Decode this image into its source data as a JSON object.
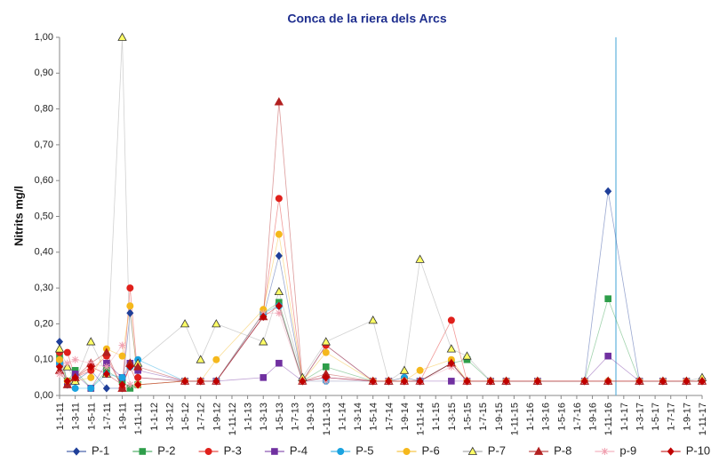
{
  "chart_data": {
    "type": "line",
    "title": "Conca de la riera dels Arcs",
    "y_label": "Nitrits mg/l",
    "x": [
      "1-1-11",
      "1-2-11",
      "1-3-11",
      "1-5-11",
      "1-7-11",
      "1-9-11",
      "1-10-11",
      "1-11-11",
      "1-5-12",
      "1-7-12",
      "1-9-12",
      "1-3-13",
      "1-5-13",
      "1-8-13",
      "1-11-13",
      "1-5-14",
      "1-7-14",
      "1-9-14",
      "1-11-14",
      "1-3-15",
      "1-5-15",
      "1-8-15",
      "1-10-15",
      "1-2-16",
      "1-8-16",
      "1-11-16",
      "1-3-17",
      "1-6-17",
      "1-9-17",
      "1-11-17"
    ],
    "xlim": [
      "1-1-11",
      "1-11-17"
    ],
    "xticks": [
      "1-1-11",
      "1-3-11",
      "1-5-11",
      "1-7-11",
      "1-9-11",
      "1-11-11",
      "1-1-12",
      "1-3-12",
      "1-5-12",
      "1-7-12",
      "1-9-12",
      "1-11-12",
      "1-1-13",
      "1-3-13",
      "1-5-13",
      "1-7-13",
      "1-9-13",
      "1-11-13",
      "1-1-14",
      "1-3-14",
      "1-5-14",
      "1-7-14",
      "1-9-14",
      "1-11-14",
      "1-1-15",
      "1-3-15",
      "1-5-15",
      "1-7-15",
      "1-9-15",
      "1-11-15",
      "1-1-16",
      "1-3-16",
      "1-5-16",
      "1-7-16",
      "1-9-16",
      "1-11-16",
      "1-1-17",
      "1-3-17",
      "1-5-17",
      "1-7-17",
      "1-9-17",
      "1-11-17"
    ],
    "ylim": [
      0,
      1
    ],
    "yticks": [
      {
        "value": 0,
        "label": "0,00"
      },
      {
        "value": 0.1,
        "label": "0,10"
      },
      {
        "value": 0.2,
        "label": "0,20"
      },
      {
        "value": 0.3,
        "label": "0,30"
      },
      {
        "value": 0.4,
        "label": "0,40"
      },
      {
        "value": 0.5,
        "label": "0,50"
      },
      {
        "value": 0.6,
        "label": "0,60"
      },
      {
        "value": 0.7,
        "label": "0,70"
      },
      {
        "value": 0.8,
        "label": "0,80"
      },
      {
        "value": 0.9,
        "label": "0,90"
      },
      {
        "value": 1,
        "label": "1,00"
      }
    ],
    "vline_x": "1-12-16",
    "vline_color": "#5fb3dc",
    "legend": "bottom",
    "series": [
      {
        "name": "P-1",
        "color": "#1f3f99",
        "marker": "diamond",
        "values": [
          0.15,
          0.03,
          0.04,
          0.07,
          0.02,
          0.02,
          0.23,
          0.05,
          0.04,
          0.04,
          0.04,
          0.22,
          0.39,
          0.04,
          0.14,
          0.04,
          0.04,
          0.04,
          0.04,
          0.09,
          0.04,
          0.04,
          0.04,
          0.04,
          0.04,
          0.57,
          0.04,
          0.04,
          0.04,
          0.04
        ]
      },
      {
        "name": "P-2",
        "color": "#2e9e4a",
        "marker": "square",
        "values": [
          0.11,
          0.04,
          0.07,
          0.02,
          0.07,
          0.04,
          0.02,
          0.03,
          0.04,
          0.04,
          0.04,
          0.23,
          0.26,
          0.04,
          0.08,
          0.04,
          0.04,
          0.04,
          0.04,
          0.09,
          0.1,
          0.04,
          0.04,
          0.04,
          0.04,
          0.27,
          0.04,
          0.04,
          0.04,
          0.04
        ]
      },
      {
        "name": "P-3",
        "color": "#e0201b",
        "marker": "circle",
        "values": [
          0.12,
          0.12,
          0.05,
          0.07,
          0.11,
          0.02,
          0.3,
          0.05,
          0.04,
          0.04,
          0.04,
          0.23,
          0.55,
          0.04,
          0.14,
          0.04,
          0.04,
          0.05,
          0.04,
          0.21,
          0.04,
          0.04,
          0.04,
          0.04,
          0.04,
          0.04,
          0.04,
          0.04,
          0.04,
          0.04
        ]
      },
      {
        "name": "P-4",
        "color": "#7030a0",
        "marker": "square",
        "values": [
          0.09,
          0.03,
          0.06,
          0.02,
          0.09,
          0.05,
          0.09,
          0.07,
          0.04,
          0.04,
          0.04,
          0.05,
          0.09,
          0.04,
          0.05,
          0.04,
          0.04,
          0.04,
          0.04,
          0.04,
          0.04,
          0.04,
          0.04,
          0.04,
          0.04,
          0.11,
          0.04,
          0.04,
          0.04,
          0.04
        ]
      },
      {
        "name": "P-5",
        "color": "#1aa3e0",
        "marker": "circle",
        "values": [
          0.09,
          0.04,
          0.02,
          0.02,
          0.06,
          0.05,
          0.08,
          0.1,
          0.04,
          0.04,
          0.04,
          0.23,
          0.25,
          0.04,
          0.04,
          0.04,
          0.04,
          0.05,
          0.04,
          0.09,
          0.04,
          0.04,
          0.04,
          0.04,
          0.04,
          0.04,
          0.04,
          0.04,
          0.04,
          0.04
        ]
      },
      {
        "name": "P-6",
        "color": "#f5b81c",
        "marker": "circle",
        "values": [
          0.1,
          0.04,
          0.04,
          0.05,
          0.13,
          0.11,
          0.25,
          0.03,
          0.04,
          0.04,
          0.1,
          0.24,
          0.45,
          0.04,
          0.12,
          0.04,
          0.04,
          0.04,
          0.07,
          0.1,
          0.04,
          0.04,
          0.04,
          0.04,
          0.04,
          0.04,
          0.04,
          0.04,
          0.04,
          0.04
        ]
      },
      {
        "name": "P-7",
        "color": "#ffff66",
        "marker": "triangle",
        "values": [
          0.13,
          0.08,
          0.04,
          0.15,
          0.06,
          1.0,
          0.09,
          0.09,
          0.2,
          0.1,
          0.2,
          0.15,
          0.29,
          0.05,
          0.15,
          0.21,
          0.04,
          0.07,
          0.38,
          0.13,
          0.11,
          0.04,
          0.04,
          0.04,
          0.04,
          0.04,
          0.04,
          0.04,
          0.04,
          0.05
        ]
      },
      {
        "name": "P-8",
        "color": "#b22020",
        "marker": "triangle",
        "values": [
          0.07,
          0.03,
          0.05,
          0.09,
          0.12,
          0.02,
          0.09,
          0.08,
          0.04,
          0.04,
          0.04,
          0.22,
          0.82,
          0.04,
          0.06,
          0.04,
          0.04,
          0.04,
          0.04,
          0.09,
          0.04,
          0.04,
          0.04,
          0.04,
          0.04,
          0.04,
          0.04,
          0.04,
          0.04,
          0.04
        ]
      },
      {
        "name": "p-9",
        "color": "#f0a0b0",
        "marker": "star",
        "values": [
          0.06,
          0.09,
          0.1,
          0.09,
          0.08,
          0.14,
          0.03,
          0.03,
          0.04,
          0.04,
          0.04,
          0.23,
          0.23,
          0.04,
          0.04,
          0.04,
          0.04,
          0.04,
          0.04,
          0.08,
          0.04,
          0.04,
          0.04,
          0.04,
          0.04,
          0.04,
          0.04,
          0.04,
          0.04,
          0.04
        ]
      },
      {
        "name": "P-10",
        "color": "#c00000",
        "marker": "diamond",
        "values": [
          0.08,
          0.04,
          0.05,
          0.08,
          0.06,
          0.03,
          0.08,
          0.03,
          0.04,
          0.04,
          0.04,
          0.22,
          0.25,
          0.04,
          0.05,
          0.04,
          0.04,
          0.04,
          0.04,
          0.09,
          0.04,
          0.04,
          0.04,
          0.04,
          0.04,
          0.04,
          0.04,
          0.04,
          0.04,
          0.04
        ]
      }
    ]
  }
}
